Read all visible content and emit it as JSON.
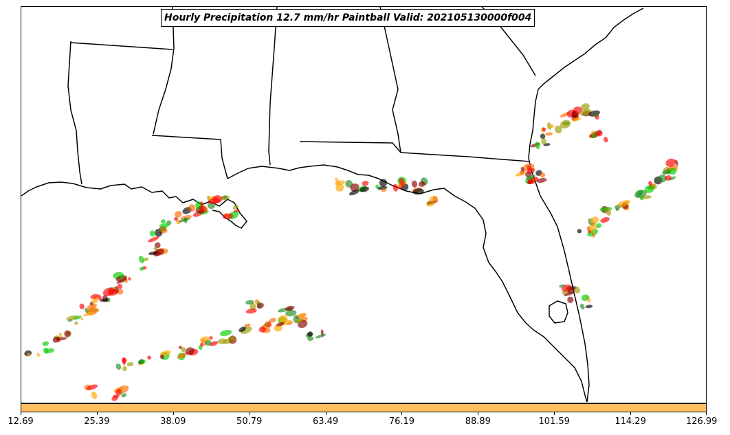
{
  "title": "Hourly Precipitation 12.7 mm/hr Paintball Valid: 202105130000f004",
  "colorbar": {
    "color": "#ffbf5f",
    "ticks": [
      "12.69",
      "25.39",
      "38.09",
      "50.79",
      "63.49",
      "76.19",
      "88.89",
      "101.59",
      "114.29",
      "126.99"
    ]
  },
  "map": {
    "land_color": "#ffffff",
    "water_color": "#ffffff",
    "boundary_color": "#000000"
  },
  "member_colors": [
    "#ff0000",
    "#ff6a00",
    "#ffa500",
    "#00cc00",
    "#228b22",
    "#9b9b00",
    "#8b0000",
    "#000000"
  ]
}
